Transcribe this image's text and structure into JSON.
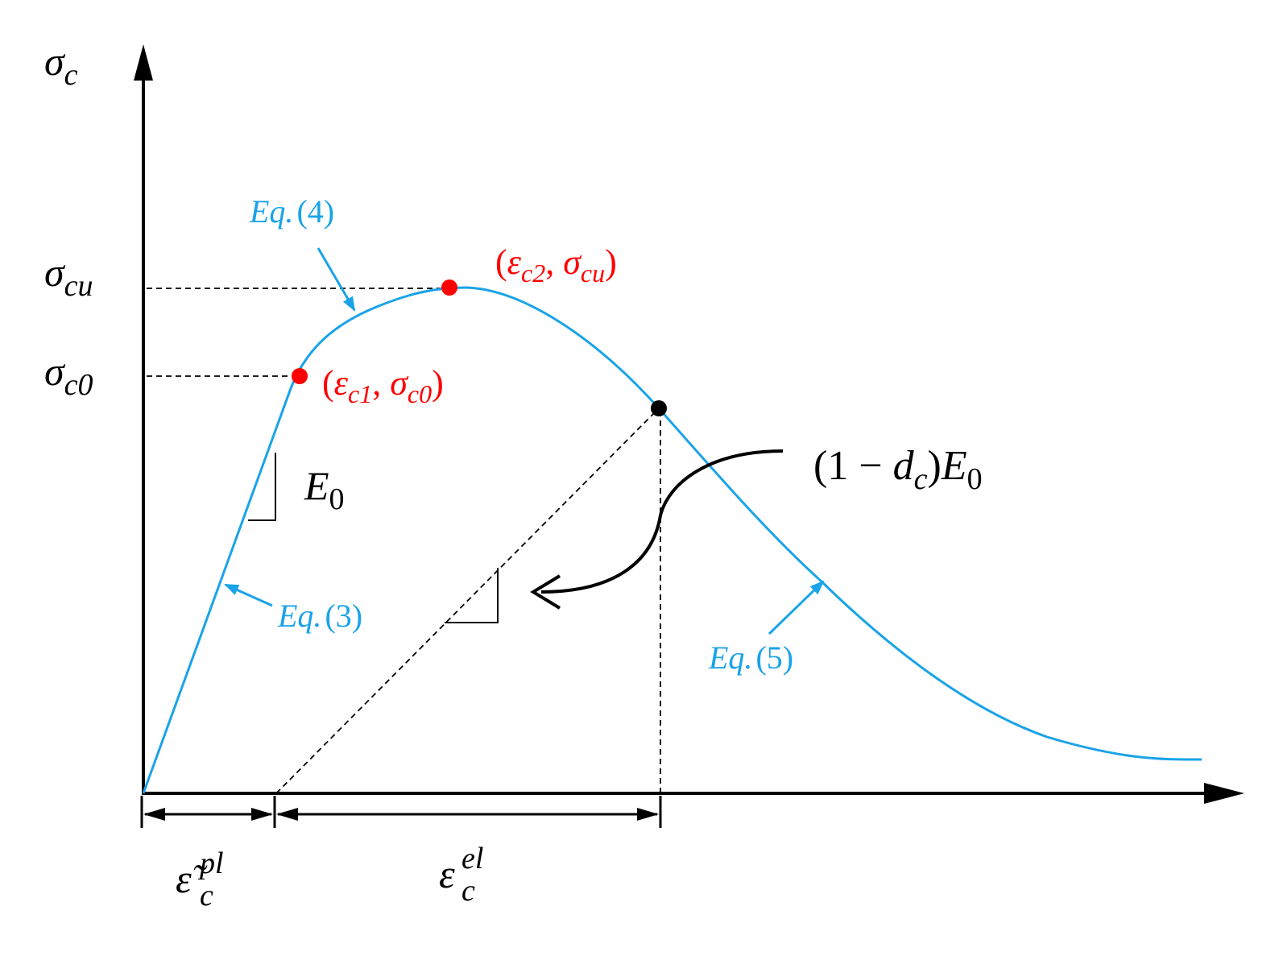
{
  "labels": {
    "sigma_c": [
      "σ",
      "c"
    ],
    "sigma_cu": [
      "σ",
      "cu"
    ],
    "sigma_c0": [
      "σ",
      "c0"
    ],
    "eq4": [
      "Eq.",
      "(4)"
    ],
    "point_peak": [
      "(",
      "ε",
      "c2",
      ", ",
      "σ",
      "cu",
      ")"
    ],
    "point_yield": [
      "(",
      "ε",
      "c1",
      ", ",
      "σ",
      "c0",
      ")"
    ],
    "e0": [
      "E",
      "0"
    ],
    "damaged": [
      "(1 − ",
      "d",
      "c",
      ")",
      "E",
      "0"
    ],
    "eq3": [
      "Eq.",
      "(3)"
    ],
    "eq5": [
      "Eq.",
      "(5)"
    ],
    "eps_pl": [
      "ε̃",
      "c",
      "pl"
    ],
    "eps_el": [
      "ε",
      "c",
      "el"
    ]
  }
}
